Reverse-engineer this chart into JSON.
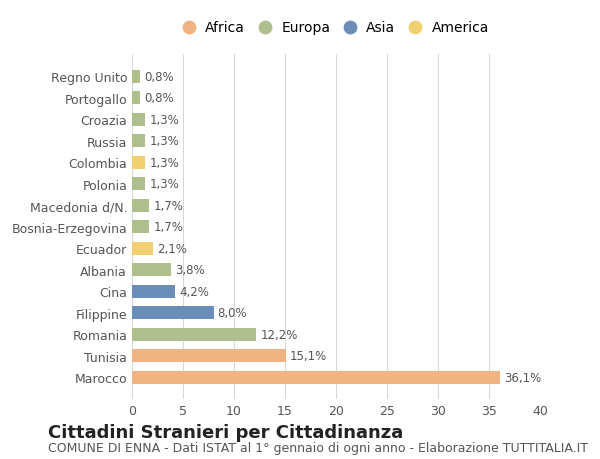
{
  "categories": [
    "Marocco",
    "Tunisia",
    "Romania",
    "Filippine",
    "Cina",
    "Albania",
    "Ecuador",
    "Bosnia-Erzegovina",
    "Macedonia d/N.",
    "Polonia",
    "Colombia",
    "Russia",
    "Croazia",
    "Portogallo",
    "Regno Unito"
  ],
  "values": [
    36.1,
    15.1,
    12.2,
    8.0,
    4.2,
    3.8,
    2.1,
    1.7,
    1.7,
    1.3,
    1.3,
    1.3,
    1.3,
    0.8,
    0.8
  ],
  "labels": [
    "36,1%",
    "15,1%",
    "12,2%",
    "8,0%",
    "4,2%",
    "3,8%",
    "2,1%",
    "1,7%",
    "1,7%",
    "1,3%",
    "1,3%",
    "1,3%",
    "1,3%",
    "0,8%",
    "0,8%"
  ],
  "colors": [
    "#F0B482",
    "#F0B482",
    "#AEBE8C",
    "#6B8EB8",
    "#6B8EB8",
    "#AEBE8C",
    "#F0D070",
    "#AEBE8C",
    "#AEBE8C",
    "#AEBE8C",
    "#F0D070",
    "#AEBE8C",
    "#AEBE8C",
    "#AEBE8C",
    "#AEBE8C"
  ],
  "continent_colors": {
    "Africa": "#F0B482",
    "Europa": "#AEBE8C",
    "Asia": "#6B8EB8",
    "America": "#F0D070"
  },
  "legend_labels": [
    "Africa",
    "Europa",
    "Asia",
    "America"
  ],
  "xlim": [
    0,
    40
  ],
  "xticks": [
    0,
    5,
    10,
    15,
    20,
    25,
    30,
    35,
    40
  ],
  "title": "Cittadini Stranieri per Cittadinanza",
  "subtitle": "COMUNE DI ENNA - Dati ISTAT al 1° gennaio di ogni anno - Elaborazione TUTTITALIA.IT",
  "bg_color": "#FFFFFF",
  "grid_color": "#D8D8D8",
  "title_fontsize": 13,
  "subtitle_fontsize": 9,
  "label_fontsize": 8.5,
  "tick_fontsize": 9
}
